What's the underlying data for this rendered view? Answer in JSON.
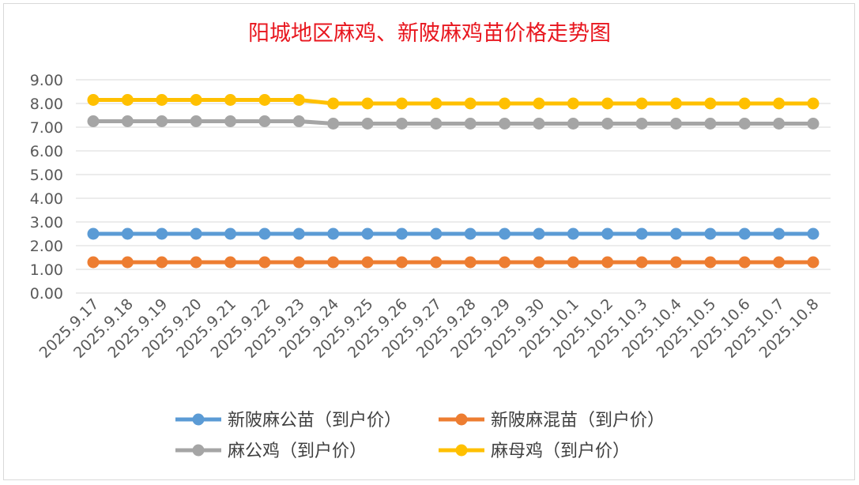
{
  "chart_data": {
    "type": "line",
    "title": "阳城地区麻鸡、新陂麻鸡苗价格走势图",
    "xlabel": "",
    "ylabel": "",
    "ylim": [
      0,
      9
    ],
    "ytick_step": 1,
    "yticks": [
      "0.00",
      "1.00",
      "2.00",
      "3.00",
      "4.00",
      "5.00",
      "6.00",
      "7.00",
      "8.00",
      "9.00"
    ],
    "grid": true,
    "legend_position": "bottom",
    "categories": [
      "2025.9.17",
      "2025.9.18",
      "2025.9.19",
      "2025.9.20",
      "2025.9.21",
      "2025.9.22",
      "2025.9.23",
      "2025.9.24",
      "2025.9.25",
      "2025.9.26",
      "2025.9.27",
      "2025.9.28",
      "2025.9.29",
      "2025.9.30",
      "2025.10.1",
      "2025.10.2",
      "2025.10.3",
      "2025.10.4",
      "2025.10.5",
      "2025.10.6",
      "2025.10.7",
      "2025.10.8"
    ],
    "series": [
      {
        "name": "新陂麻公苗（到户价）",
        "color": "#5b9bd5",
        "values": [
          2.5,
          2.5,
          2.5,
          2.5,
          2.5,
          2.5,
          2.5,
          2.5,
          2.5,
          2.5,
          2.5,
          2.5,
          2.5,
          2.5,
          2.5,
          2.5,
          2.5,
          2.5,
          2.5,
          2.5,
          2.5,
          2.5
        ]
      },
      {
        "name": "新陂麻混苗（到户价）",
        "color": "#ed7d31",
        "values": [
          1.3,
          1.3,
          1.3,
          1.3,
          1.3,
          1.3,
          1.3,
          1.3,
          1.3,
          1.3,
          1.3,
          1.3,
          1.3,
          1.3,
          1.3,
          1.3,
          1.3,
          1.3,
          1.3,
          1.3,
          1.3,
          1.3
        ]
      },
      {
        "name": "麻公鸡（到户价）",
        "color": "#a5a5a5",
        "values": [
          7.25,
          7.25,
          7.25,
          7.25,
          7.25,
          7.25,
          7.25,
          7.15,
          7.15,
          7.15,
          7.15,
          7.15,
          7.15,
          7.15,
          7.15,
          7.15,
          7.15,
          7.15,
          7.15,
          7.15,
          7.15,
          7.15
        ]
      },
      {
        "name": "麻母鸡（到户价）",
        "color": "#ffc000",
        "values": [
          8.15,
          8.15,
          8.15,
          8.15,
          8.15,
          8.15,
          8.15,
          8.0,
          8.0,
          8.0,
          8.0,
          8.0,
          8.0,
          8.0,
          8.0,
          8.0,
          8.0,
          8.0,
          8.0,
          8.0,
          8.0,
          8.0
        ]
      }
    ]
  }
}
